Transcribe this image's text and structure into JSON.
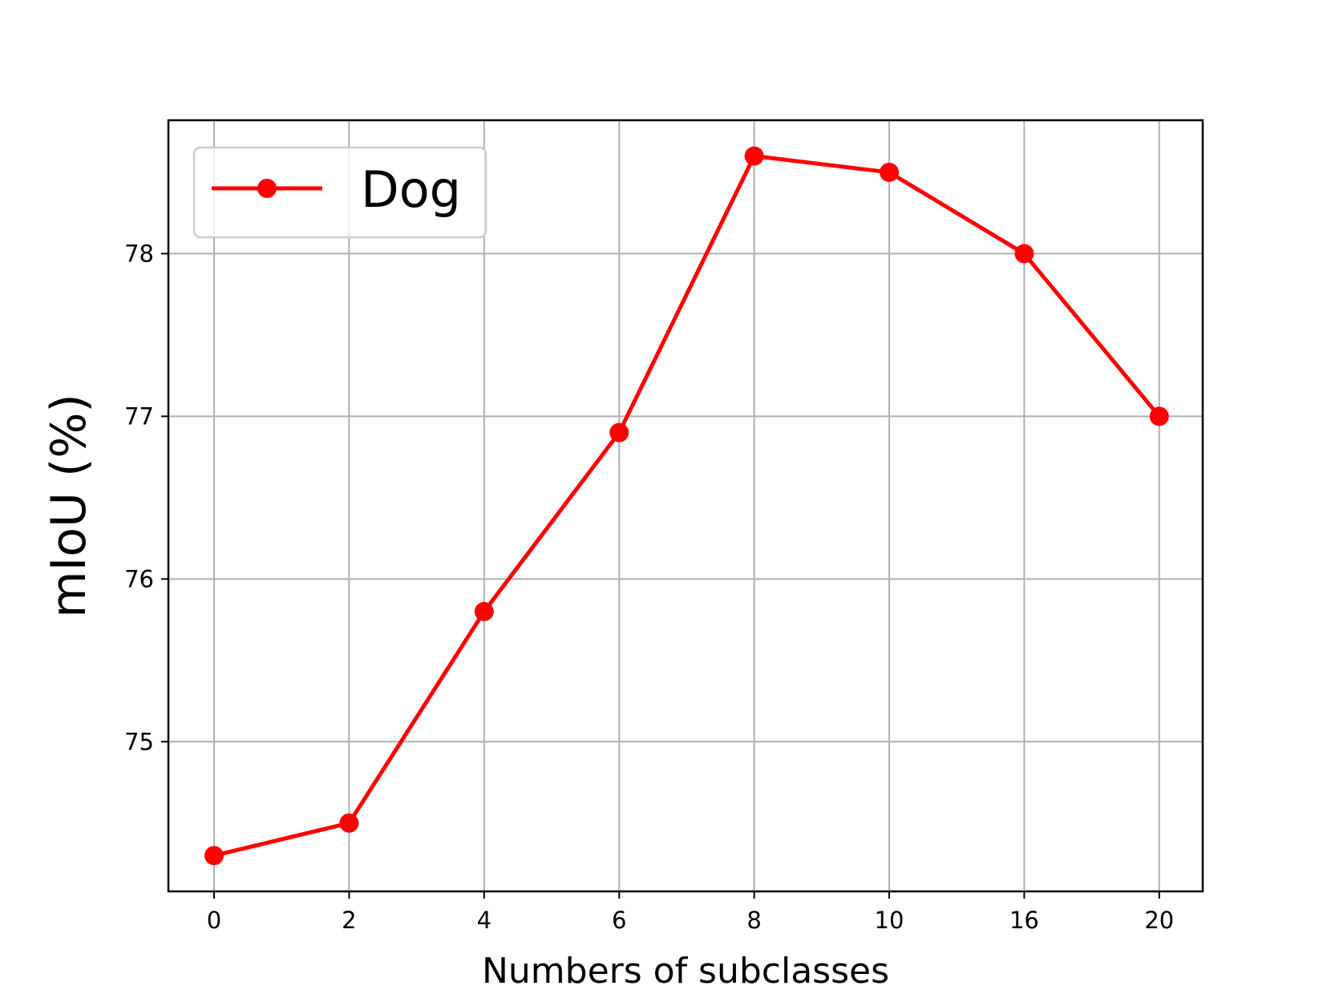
{
  "chart_data": {
    "type": "line",
    "title": "",
    "xlabel": "Numbers of subclasses",
    "ylabel": "mIoU (%)",
    "categories": [
      "0",
      "2",
      "4",
      "6",
      "8",
      "10",
      "16",
      "20"
    ],
    "series": [
      {
        "name": "Dog",
        "color": "#ff0000",
        "marker": "circle",
        "values": [
          74.3,
          74.5,
          75.8,
          76.9,
          78.6,
          78.5,
          78.0,
          77.0
        ]
      }
    ],
    "yticks": [
      75,
      76,
      77,
      78
    ],
    "ylim": [
      74.08,
      78.82
    ],
    "grid": true,
    "legend_position": "top-left"
  }
}
